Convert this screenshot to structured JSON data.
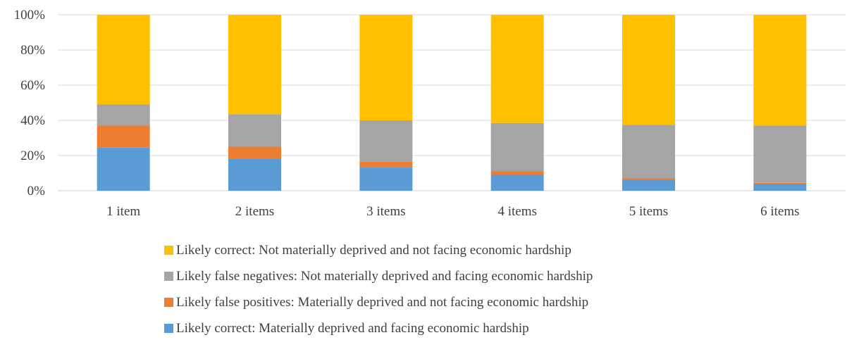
{
  "chart_data": {
    "type": "bar",
    "stacked": true,
    "categories": [
      "1 item",
      "2 items",
      "3 items",
      "4 items",
      "5 items",
      "6 items"
    ],
    "series": [
      {
        "name": "Likely correct: Materially deprived and facing economic hardship",
        "color": "#5B9BD5",
        "values": [
          24.5,
          18,
          13.5,
          9,
          6,
          4
        ]
      },
      {
        "name": "Likely false positives: Materially deprived and not facing economic hardship",
        "color": "#ED7D31",
        "values": [
          12.5,
          7,
          3,
          2,
          1,
          0.5
        ]
      },
      {
        "name": "Likely false negatives: Not materially deprived and facing economic hardship",
        "color": "#A5A5A5",
        "values": [
          12,
          18.5,
          23.5,
          27.5,
          30.5,
          32.5
        ]
      },
      {
        "name": "Likely correct: Not materially deprived and not facing economic hardship",
        "color": "#FFC000",
        "values": [
          51,
          56.5,
          60,
          61.5,
          62.5,
          63
        ]
      }
    ],
    "y_ticks": [
      "0%",
      "20%",
      "40%",
      "60%",
      "80%",
      "100%"
    ],
    "ylim": [
      0,
      100
    ],
    "grid": true,
    "legend_position": "bottom",
    "legend_order": [
      3,
      2,
      1,
      0
    ],
    "xlabel": "",
    "ylabel": "",
    "title": ""
  }
}
